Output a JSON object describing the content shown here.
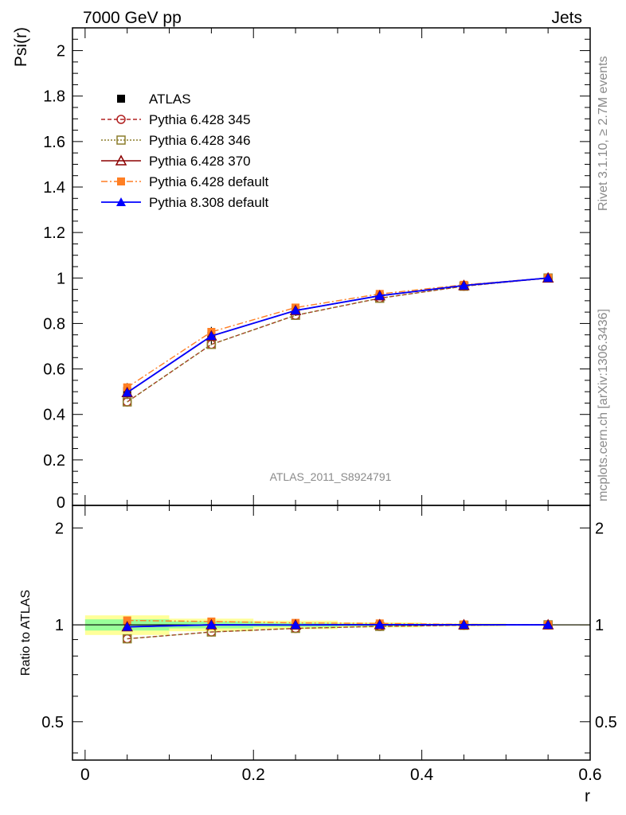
{
  "header": {
    "left": "7000 GeV pp",
    "right": "Jets"
  },
  "side_text": {
    "rivet": "Rivet 3.1.10, ≥ 2.7M events",
    "mcplots": "mcplots.cern.ch [arXiv:1306.3436]"
  },
  "watermark": "ATLAS_2011_S8924791",
  "colors": {
    "atlas": "#000000",
    "p345": "#b22222",
    "p346": "#8b7d2b",
    "p370": "#8b0000",
    "pdefault": "#ff7f24",
    "p8": "#0000ff",
    "band_outer": "#ffff99",
    "band_inner": "#99ff99"
  },
  "chart_data": [
    {
      "type": "line",
      "panel": "main",
      "ylabel": "Psi(r)",
      "xlim": [
        -0.015,
        0.6
      ],
      "ylim": [
        0,
        2.1
      ],
      "y_ticks": [
        "0",
        "0.2",
        "0.4",
        "0.6",
        "0.8",
        "1",
        "1.2",
        "1.4",
        "1.6",
        "1.8",
        "2"
      ],
      "x": [
        0.05,
        0.15,
        0.25,
        0.35,
        0.45,
        0.55
      ],
      "legend_position": "top-left",
      "series": [
        {
          "key": "atlas",
          "name": "ATLAS",
          "values": [
            0.503,
            0.745,
            0.858,
            0.921,
            0.967,
            1.0
          ],
          "errors": [
            0.035,
            0.04,
            0.025,
            0.015,
            0.008,
            0.0
          ]
        },
        {
          "key": "p345",
          "name": "Pythia 6.428 345",
          "values": [
            0.455,
            0.708,
            0.836,
            0.911,
            0.964,
            1.0
          ]
        },
        {
          "key": "p346",
          "name": "Pythia 6.428 346",
          "values": [
            0.455,
            0.708,
            0.836,
            0.911,
            0.964,
            1.0
          ]
        },
        {
          "key": "p370",
          "name": "Pythia 6.428 370",
          "values": [
            0.496,
            0.745,
            0.857,
            0.922,
            0.967,
            1.0
          ]
        },
        {
          "key": "pdefault",
          "name": "Pythia 6.428 default",
          "values": [
            0.519,
            0.763,
            0.87,
            0.93,
            0.97,
            1.0
          ]
        },
        {
          "key": "p8",
          "name": "Pythia 8.308 default",
          "values": [
            0.496,
            0.745,
            0.857,
            0.922,
            0.967,
            1.0
          ]
        }
      ]
    },
    {
      "type": "line",
      "panel": "ratio",
      "ylabel": "Ratio to ATLAS",
      "xlabel": "r",
      "xlim": [
        -0.015,
        0.6
      ],
      "x_ticks": [
        "0",
        "0.2",
        "0.4",
        "0.6"
      ],
      "y_ticks": [
        "0.5",
        "1",
        "2"
      ],
      "y_scale": "log",
      "ylim": [
        0.38,
        2.35
      ],
      "x": [
        0.05,
        0.15,
        0.25,
        0.35,
        0.45,
        0.55
      ],
      "bands": {
        "bins": [
          [
            0.0,
            0.1
          ],
          [
            0.1,
            0.2
          ],
          [
            0.2,
            0.3
          ],
          [
            0.3,
            0.4
          ],
          [
            0.4,
            0.5
          ],
          [
            0.5,
            0.6
          ]
        ],
        "outer": [
          0.07,
          0.045,
          0.03,
          0.018,
          0.01,
          0.004
        ],
        "inner": [
          0.04,
          0.025,
          0.015,
          0.009,
          0.005,
          0.002
        ]
      },
      "series": [
        {
          "key": "p345",
          "values": [
            0.905,
            0.95,
            0.975,
            0.989,
            0.997,
            1.0
          ]
        },
        {
          "key": "p346",
          "values": [
            0.905,
            0.95,
            0.975,
            0.989,
            0.997,
            1.0
          ]
        },
        {
          "key": "p370",
          "values": [
            0.986,
            1.0,
            0.999,
            1.001,
            1.0,
            1.0
          ]
        },
        {
          "key": "pdefault",
          "values": [
            1.032,
            1.024,
            1.014,
            1.01,
            1.003,
            1.0
          ]
        },
        {
          "key": "p8",
          "values": [
            0.986,
            1.0,
            0.999,
            1.001,
            1.0,
            1.0
          ]
        }
      ]
    }
  ]
}
